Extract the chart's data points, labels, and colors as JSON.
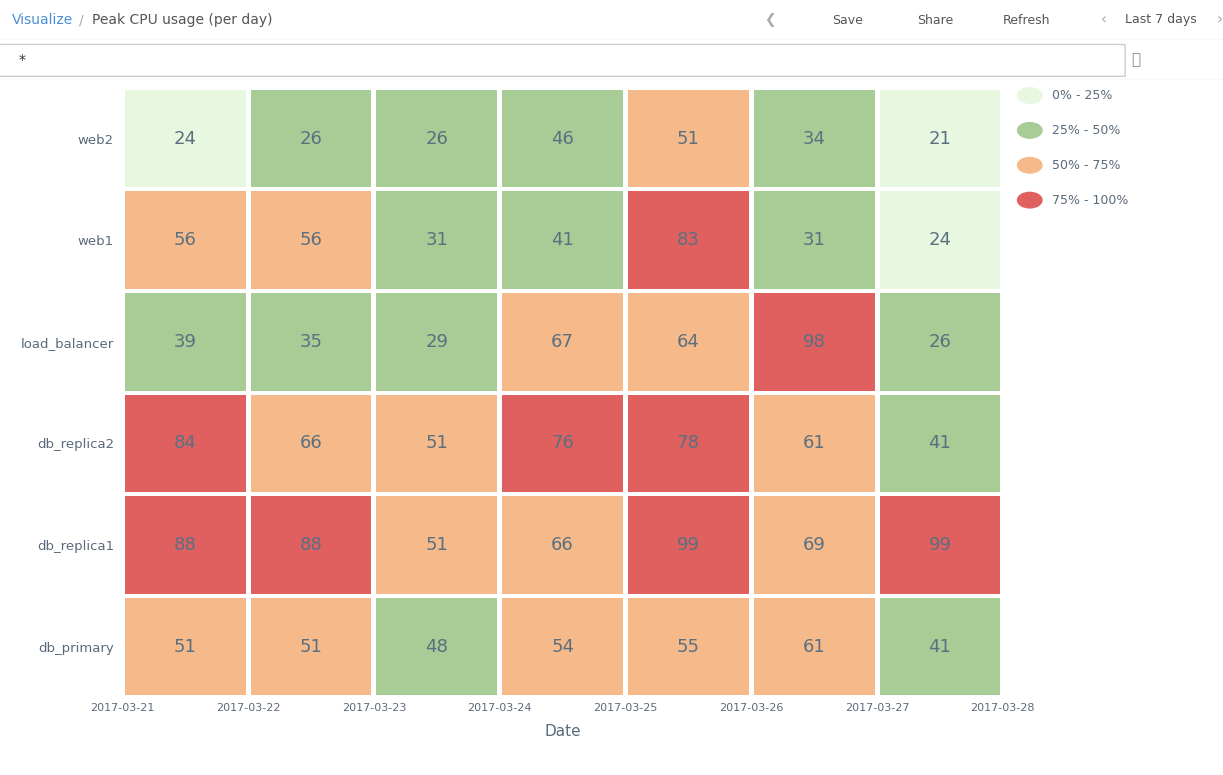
{
  "rows": [
    "web2",
    "web1",
    "load_balancer",
    "db_replica2",
    "db_replica1",
    "db_primary"
  ],
  "cols": [
    "2017-03-21",
    "2017-03-22",
    "2017-03-23",
    "2017-03-24",
    "2017-03-25",
    "2017-03-26",
    "2017-03-27",
    "2017-03-28"
  ],
  "values": [
    [
      24,
      26,
      26,
      46,
      51,
      34,
      21
    ],
    [
      56,
      56,
      31,
      41,
      83,
      31,
      24
    ],
    [
      39,
      35,
      29,
      67,
      64,
      98,
      26
    ],
    [
      84,
      66,
      51,
      76,
      78,
      61,
      41
    ],
    [
      88,
      88,
      51,
      66,
      99,
      69,
      99
    ],
    [
      51,
      51,
      48,
      54,
      55,
      61,
      41
    ]
  ],
  "color_ranges": [
    {
      "min": 0,
      "max": 25,
      "color": "#e8f8e0"
    },
    {
      "min": 25,
      "max": 50,
      "color": "#a8cc96"
    },
    {
      "min": 50,
      "max": 75,
      "color": "#f5b98a"
    },
    {
      "min": 75,
      "max": 100,
      "color": "#e06060"
    }
  ],
  "legend_labels": [
    "0% - 25%",
    "25% - 50%",
    "50% - 75%",
    "75% - 100%"
  ],
  "legend_colors": [
    "#e8f8e0",
    "#a8cc96",
    "#f5b98a",
    "#e06060"
  ],
  "xlabel": "Date",
  "text_color": "#5a6a7a",
  "cell_text_color": "#5a7080",
  "background_color": "#ffffff",
  "header_bg": "#f5f5f5",
  "header_border": "#e0e0e0",
  "title_text": "Peak CPU usage (per day)",
  "breadcrumb_text": "Visualize",
  "nav_items": [
    "Save",
    "Share",
    "Refresh"
  ],
  "last7": "Last 7 days",
  "search_placeholder": "*",
  "ui_text_color": "#555555"
}
